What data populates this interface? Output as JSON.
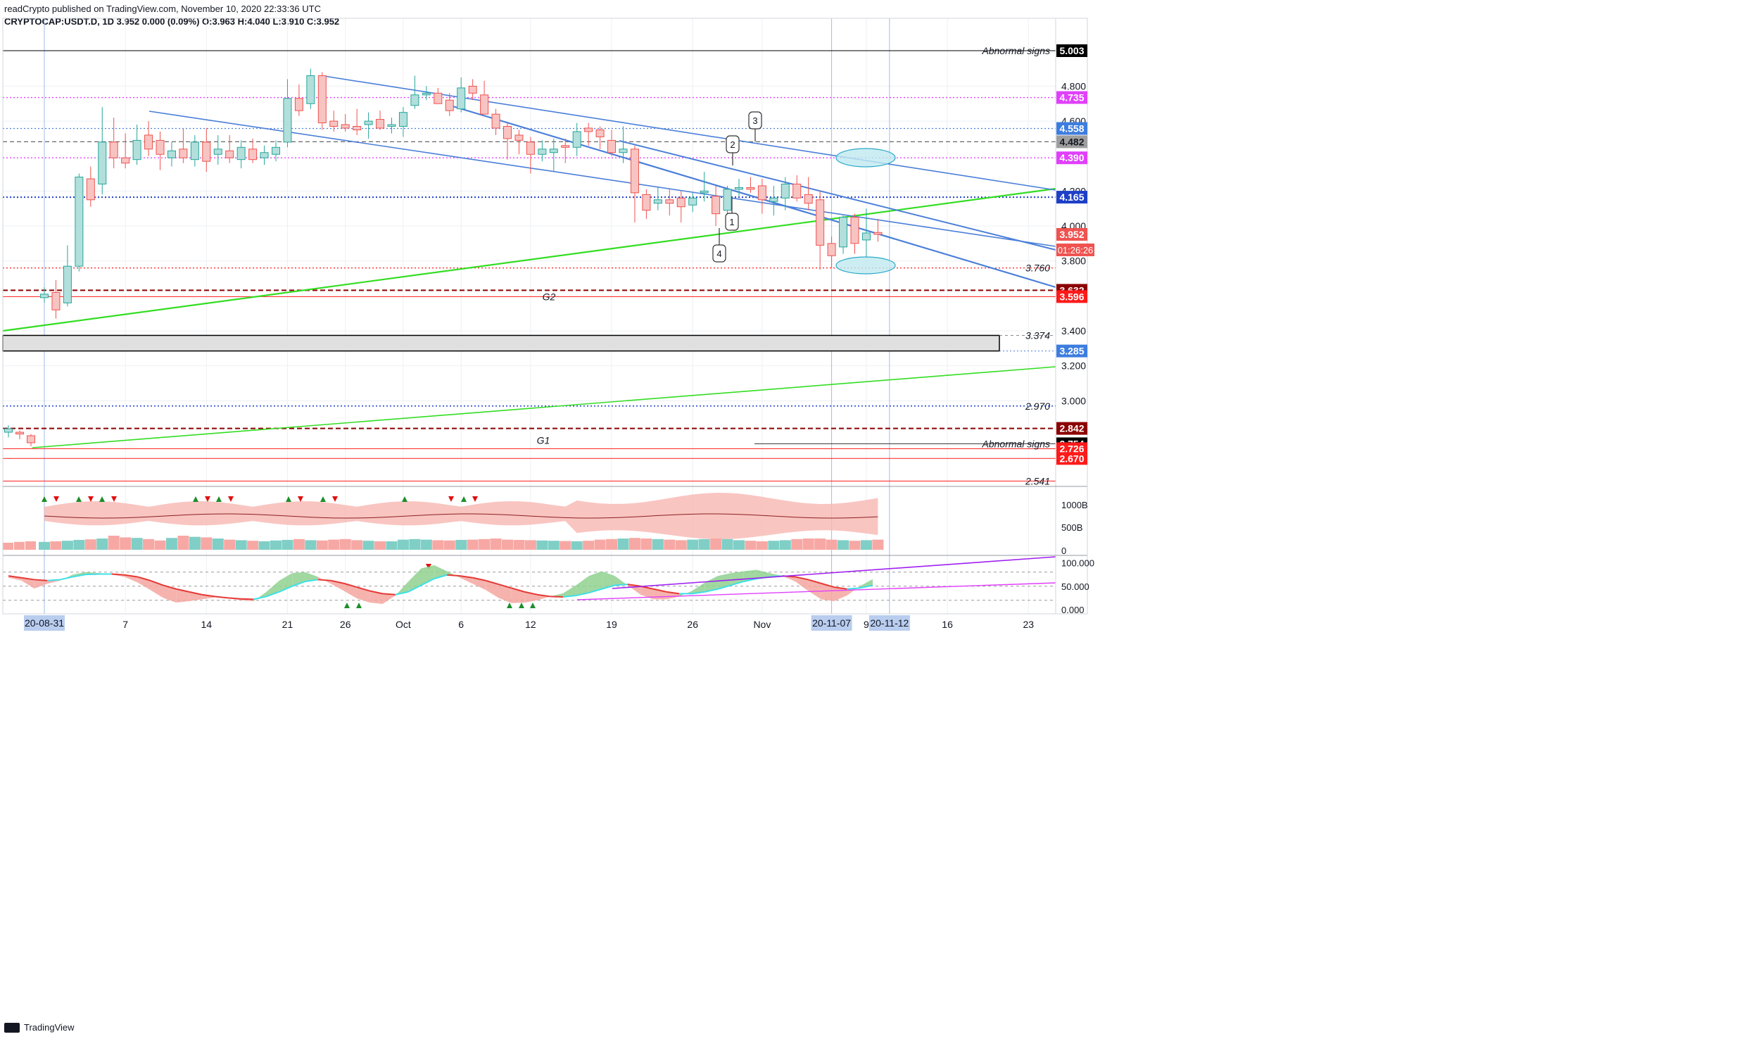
{
  "header": {
    "publisher": "readCrypto published on TradingView.com, November 10, 2020 22:33:36 UTC",
    "symbol_line": "CRYPTOCAP:USDT.D, 1D  3.952  0.000 (0.09%)  O:3.963  H:4.040  L:3.910  C:3.952"
  },
  "footer": {
    "brand": "TradingView"
  },
  "colors": {
    "up": "#26a69a",
    "up_fill": "#b2dfdb",
    "down": "#ef5350",
    "down_fill": "#f8c4c2",
    "green_line": "#33dd22",
    "blue_line": "#4a7fd8",
    "magenta": "#e040fb",
    "purple": "#a020f0",
    "dark_red": "#8b0000",
    "red": "#ff1a1a",
    "black": "#000000",
    "gray": "#808080",
    "blue_tag": "#3d7ddf"
  },
  "chart_data": {
    "type": "candlestick",
    "y_range": [
      2.5,
      5.1
    ],
    "y_ticks": [
      "4.800",
      "4.600",
      "4.200",
      "4.000",
      "3.800",
      "3.400",
      "3.200",
      "3.000"
    ],
    "x_ticks": [
      {
        "label": "7",
        "i": 7
      },
      {
        "label": "14",
        "i": 14
      },
      {
        "label": "21",
        "i": 21
      },
      {
        "label": "26",
        "i": 26
      },
      {
        "label": "Oct",
        "i": 31
      },
      {
        "label": "6",
        "i": 36
      },
      {
        "label": "12",
        "i": 42
      },
      {
        "label": "19",
        "i": 49
      },
      {
        "label": "26",
        "i": 56
      },
      {
        "label": "Nov",
        "i": 62
      },
      {
        "label": "9",
        "i": 71
      },
      {
        "label": "16",
        "i": 78
      },
      {
        "label": "23",
        "i": 85
      }
    ],
    "x_highlight_labels": [
      {
        "label": "20-08-31",
        "i": 0
      },
      {
        "label": "20-11-07",
        "i": 68
      },
      {
        "label": "20-11-12",
        "i": 73
      }
    ],
    "candles_early": [
      {
        "o": 2.82,
        "h": 2.86,
        "l": 2.79,
        "c": 2.84
      },
      {
        "o": 2.82,
        "h": 2.83,
        "l": 2.78,
        "c": 2.81
      },
      {
        "o": 2.8,
        "h": 2.81,
        "l": 2.74,
        "c": 2.76
      }
    ],
    "candles": [
      {
        "o": 3.59,
        "h": 3.65,
        "l": 3.56,
        "c": 3.61
      },
      {
        "o": 3.62,
        "h": 3.69,
        "l": 3.47,
        "c": 3.52
      },
      {
        "o": 3.56,
        "h": 3.89,
        "l": 3.54,
        "c": 3.77
      },
      {
        "o": 3.77,
        "h": 4.3,
        "l": 3.74,
        "c": 4.28
      },
      {
        "o": 4.27,
        "h": 4.34,
        "l": 4.11,
        "c": 4.15
      },
      {
        "o": 4.24,
        "h": 4.68,
        "l": 4.18,
        "c": 4.48
      },
      {
        "o": 4.48,
        "h": 4.62,
        "l": 4.33,
        "c": 4.39
      },
      {
        "o": 4.39,
        "h": 4.53,
        "l": 4.33,
        "c": 4.36
      },
      {
        "o": 4.38,
        "h": 4.58,
        "l": 4.35,
        "c": 4.49
      },
      {
        "o": 4.52,
        "h": 4.6,
        "l": 4.4,
        "c": 4.44
      },
      {
        "o": 4.49,
        "h": 4.54,
        "l": 4.32,
        "c": 4.41
      },
      {
        "o": 4.39,
        "h": 4.48,
        "l": 4.34,
        "c": 4.43
      },
      {
        "o": 4.44,
        "h": 4.56,
        "l": 4.36,
        "c": 4.39
      },
      {
        "o": 4.38,
        "h": 4.52,
        "l": 4.34,
        "c": 4.48
      },
      {
        "o": 4.48,
        "h": 4.56,
        "l": 4.31,
        "c": 4.37
      },
      {
        "o": 4.41,
        "h": 4.52,
        "l": 4.35,
        "c": 4.44
      },
      {
        "o": 4.43,
        "h": 4.52,
        "l": 4.36,
        "c": 4.39
      },
      {
        "o": 4.38,
        "h": 4.49,
        "l": 4.33,
        "c": 4.45
      },
      {
        "o": 4.44,
        "h": 4.5,
        "l": 4.36,
        "c": 4.38
      },
      {
        "o": 4.39,
        "h": 4.46,
        "l": 4.35,
        "c": 4.42
      },
      {
        "o": 4.41,
        "h": 4.49,
        "l": 4.37,
        "c": 4.45
      },
      {
        "o": 4.48,
        "h": 4.84,
        "l": 4.45,
        "c": 4.73
      },
      {
        "o": 4.73,
        "h": 4.81,
        "l": 4.63,
        "c": 4.66
      },
      {
        "o": 4.7,
        "h": 4.9,
        "l": 4.67,
        "c": 4.86
      },
      {
        "o": 4.86,
        "h": 4.88,
        "l": 4.55,
        "c": 4.59
      },
      {
        "o": 4.6,
        "h": 4.66,
        "l": 4.54,
        "c": 4.57
      },
      {
        "o": 4.58,
        "h": 4.64,
        "l": 4.54,
        "c": 4.56
      },
      {
        "o": 4.57,
        "h": 4.67,
        "l": 4.52,
        "c": 4.55
      },
      {
        "o": 4.58,
        "h": 4.65,
        "l": 4.5,
        "c": 4.6
      },
      {
        "o": 4.61,
        "h": 4.66,
        "l": 4.55,
        "c": 4.56
      },
      {
        "o": 4.57,
        "h": 4.62,
        "l": 4.53,
        "c": 4.58
      },
      {
        "o": 4.57,
        "h": 4.68,
        "l": 4.51,
        "c": 4.65
      },
      {
        "o": 4.69,
        "h": 4.86,
        "l": 4.67,
        "c": 4.75
      },
      {
        "o": 4.75,
        "h": 4.8,
        "l": 4.72,
        "c": 4.76
      },
      {
        "o": 4.76,
        "h": 4.79,
        "l": 4.7,
        "c": 4.7
      },
      {
        "o": 4.72,
        "h": 4.76,
        "l": 4.63,
        "c": 4.66
      },
      {
        "o": 4.67,
        "h": 4.85,
        "l": 4.65,
        "c": 4.79
      },
      {
        "o": 4.8,
        "h": 4.84,
        "l": 4.72,
        "c": 4.76
      },
      {
        "o": 4.75,
        "h": 4.83,
        "l": 4.64,
        "c": 4.64
      },
      {
        "o": 4.64,
        "h": 4.67,
        "l": 4.52,
        "c": 4.56
      },
      {
        "o": 4.57,
        "h": 4.59,
        "l": 4.38,
        "c": 4.5
      },
      {
        "o": 4.52,
        "h": 4.55,
        "l": 4.41,
        "c": 4.49
      },
      {
        "o": 4.48,
        "h": 4.51,
        "l": 4.3,
        "c": 4.41
      },
      {
        "o": 4.41,
        "h": 4.49,
        "l": 4.37,
        "c": 4.44
      },
      {
        "o": 4.42,
        "h": 4.5,
        "l": 4.31,
        "c": 4.44
      },
      {
        "o": 4.46,
        "h": 4.5,
        "l": 4.36,
        "c": 4.45
      },
      {
        "o": 4.45,
        "h": 4.59,
        "l": 4.4,
        "c": 4.54
      },
      {
        "o": 4.56,
        "h": 4.59,
        "l": 4.46,
        "c": 4.54
      },
      {
        "o": 4.55,
        "h": 4.57,
        "l": 4.44,
        "c": 4.51
      },
      {
        "o": 4.49,
        "h": 4.55,
        "l": 4.4,
        "c": 4.42
      },
      {
        "o": 4.42,
        "h": 4.57,
        "l": 4.36,
        "c": 4.44
      },
      {
        "o": 4.44,
        "h": 4.46,
        "l": 4.02,
        "c": 4.19
      },
      {
        "o": 4.18,
        "h": 4.21,
        "l": 4.04,
        "c": 4.09
      },
      {
        "o": 4.13,
        "h": 4.22,
        "l": 4.09,
        "c": 4.15
      },
      {
        "o": 4.15,
        "h": 4.21,
        "l": 4.06,
        "c": 4.13
      },
      {
        "o": 4.16,
        "h": 4.2,
        "l": 4.02,
        "c": 4.11
      },
      {
        "o": 4.12,
        "h": 4.19,
        "l": 4.08,
        "c": 4.16
      },
      {
        "o": 4.19,
        "h": 4.31,
        "l": 4.14,
        "c": 4.2
      },
      {
        "o": 4.17,
        "h": 4.23,
        "l": 4.0,
        "c": 4.07
      },
      {
        "o": 4.09,
        "h": 4.23,
        "l": 4.05,
        "c": 4.21
      },
      {
        "o": 4.21,
        "h": 4.27,
        "l": 4.17,
        "c": 4.22
      },
      {
        "o": 4.22,
        "h": 4.28,
        "l": 4.19,
        "c": 4.21
      },
      {
        "o": 4.23,
        "h": 4.27,
        "l": 4.07,
        "c": 4.15
      },
      {
        "o": 4.14,
        "h": 4.23,
        "l": 4.06,
        "c": 4.16
      },
      {
        "o": 4.16,
        "h": 4.28,
        "l": 4.09,
        "c": 4.24
      },
      {
        "o": 4.24,
        "h": 4.29,
        "l": 4.14,
        "c": 4.16
      },
      {
        "o": 4.18,
        "h": 4.28,
        "l": 4.09,
        "c": 4.13
      },
      {
        "o": 4.15,
        "h": 4.2,
        "l": 3.75,
        "c": 3.89
      },
      {
        "o": 3.9,
        "h": 3.94,
        "l": 3.76,
        "c": 3.83
      },
      {
        "o": 3.88,
        "h": 4.06,
        "l": 3.84,
        "c": 4.05
      },
      {
        "o": 4.05,
        "h": 4.07,
        "l": 3.84,
        "c": 3.9
      },
      {
        "o": 3.92,
        "h": 4.1,
        "l": 3.82,
        "c": 3.96
      },
      {
        "o": 3.963,
        "h": 4.04,
        "l": 3.91,
        "c": 3.952
      }
    ],
    "price_labels": [
      {
        "value": 5.003,
        "text": "5.003",
        "bg": "#000000",
        "fg": "#ffffff"
      },
      {
        "value": 4.735,
        "text": "4.735",
        "bg": "#e040fb",
        "fg": "#ffffff"
      },
      {
        "value": 4.558,
        "text": "4.558",
        "bg": "#3d7ddf",
        "fg": "#ffffff"
      },
      {
        "value": 4.482,
        "text": "4.482",
        "bg": "#9e9e9e",
        "fg": "#131722"
      },
      {
        "value": 4.39,
        "text": "4.390",
        "bg": "#e040fb",
        "fg": "#ffffff"
      },
      {
        "value": 4.165,
        "text": "4.165",
        "bg": "#1e3fc7",
        "fg": "#ffffff"
      },
      {
        "value": 3.952,
        "text": "3.952",
        "bg": "#ef5350",
        "fg": "#ffffff"
      },
      {
        "value": 3.632,
        "text": "3.632",
        "bg": "#8b0000",
        "fg": "#ffffff"
      },
      {
        "value": 3.596,
        "text": "3.596",
        "bg": "#ff1a1a",
        "fg": "#ffffff"
      },
      {
        "value": 3.285,
        "text": "3.285",
        "bg": "#3d7ddf",
        "fg": "#ffffff"
      },
      {
        "value": 2.842,
        "text": "2.842",
        "bg": "#8b0000",
        "fg": "#ffffff"
      },
      {
        "value": 2.754,
        "text": "2.754",
        "bg": "#000000",
        "fg": "#ffffff"
      },
      {
        "value": 2.726,
        "text": "2.726",
        "bg": "#ff1a1a",
        "fg": "#ffffff"
      },
      {
        "value": 2.67,
        "text": "2.670",
        "bg": "#ff1a1a",
        "fg": "#ffffff"
      }
    ],
    "countdown": "01:26:26",
    "italic_levels": [
      {
        "value": 3.76,
        "text": "3.760"
      },
      {
        "value": 3.374,
        "text": "3.374"
      },
      {
        "value": 2.97,
        "text": "2.970"
      },
      {
        "value": 2.541,
        "text": "2.541"
      }
    ],
    "annotations": {
      "abnormal_top": "Abnormal signs",
      "abnormal_bottom": "Abnormal signs",
      "g2": "G2",
      "g1": "G1",
      "callouts": [
        "1",
        "2",
        "3",
        "4"
      ]
    },
    "volume_axis": [
      "1000B",
      "500B",
      "0"
    ],
    "osc_axis": [
      "100.000",
      "50.000",
      "0.000"
    ],
    "volume_values": [
      0.28,
      0.3,
      0.32,
      0.35,
      0.37,
      0.4,
      0.5,
      0.44,
      0.42,
      0.38,
      0.33,
      0.42,
      0.5,
      0.46,
      0.44,
      0.4,
      0.36,
      0.34,
      0.32,
      0.3,
      0.33,
      0.35,
      0.38,
      0.34,
      0.33,
      0.36,
      0.38,
      0.34,
      0.32,
      0.3,
      0.3,
      0.36,
      0.38,
      0.36,
      0.34,
      0.33,
      0.35,
      0.36,
      0.38,
      0.4,
      0.36,
      0.35,
      0.34,
      0.33,
      0.32,
      0.31,
      0.3,
      0.32,
      0.36,
      0.38,
      0.4,
      0.42,
      0.4,
      0.38,
      0.36,
      0.34,
      0.36,
      0.38,
      0.4,
      0.38,
      0.34,
      0.32,
      0.3,
      0.32,
      0.34,
      0.38,
      0.4,
      0.4,
      0.36,
      0.34,
      0.32,
      0.34,
      0.36
    ],
    "osc_fast": [
      68,
      62,
      45,
      55,
      62,
      75,
      80,
      78,
      75,
      70,
      58,
      42,
      25,
      15,
      18,
      22,
      26,
      25,
      20,
      18,
      38,
      62,
      78,
      80,
      70,
      55,
      40,
      24,
      15,
      12,
      30,
      60,
      88,
      95,
      82,
      68,
      55,
      42,
      25,
      14,
      15,
      20,
      28,
      35,
      52,
      72,
      82,
      72,
      52,
      32,
      22,
      22,
      28,
      40,
      58,
      72,
      78,
      82,
      85,
      78,
      72,
      60,
      40,
      22,
      18,
      30,
      50,
      65
    ],
    "osc_slow": [
      72,
      68,
      64,
      62,
      64,
      70,
      75,
      76,
      76,
      74,
      70,
      62,
      52,
      44,
      38,
      32,
      28,
      25,
      23,
      22,
      28,
      38,
      50,
      60,
      64,
      62,
      56,
      48,
      40,
      34,
      32,
      38,
      52,
      66,
      74,
      72,
      68,
      62,
      54,
      46,
      38,
      32,
      28,
      27,
      30,
      36,
      44,
      52,
      54,
      50,
      44,
      38,
      34,
      34,
      38,
      44,
      52,
      60,
      66,
      70,
      72,
      70,
      64,
      56,
      48,
      44,
      46,
      52
    ]
  }
}
